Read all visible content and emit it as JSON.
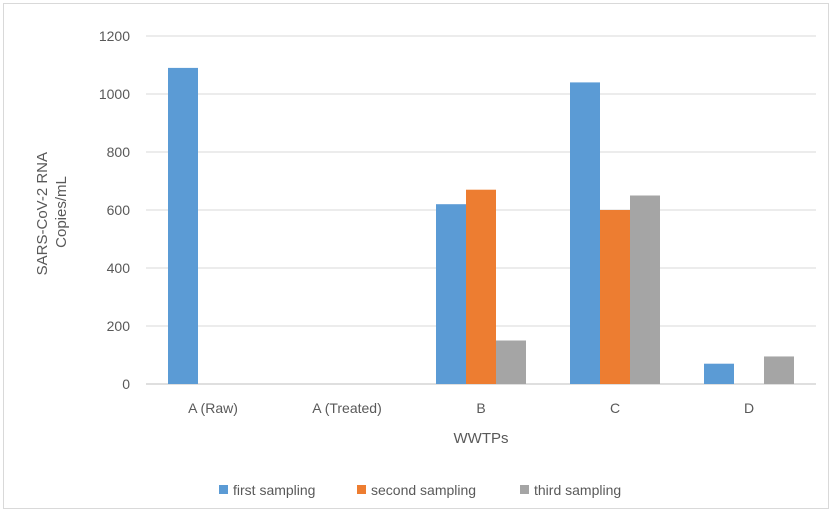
{
  "chart_data": {
    "type": "bar",
    "title": "",
    "xlabel": "WWTPs",
    "ylabel_lines": [
      "SARS-CoV-2 RNA",
      "Copies/mL"
    ],
    "categories": [
      "A (Raw)",
      "A (Treated)",
      "B",
      "C",
      "D"
    ],
    "ylim": [
      0,
      1200
    ],
    "yticks": [
      0,
      200,
      400,
      600,
      800,
      1000,
      1200
    ],
    "grid": true,
    "legend_position": "bottom",
    "series": [
      {
        "name": "first sampling",
        "color": "#5b9bd5",
        "values": [
          1090,
          0,
          620,
          1040,
          70
        ]
      },
      {
        "name": "second sampling",
        "color": "#ed7d31",
        "values": [
          0,
          0,
          670,
          600,
          0
        ]
      },
      {
        "name": "third sampling",
        "color": "#a5a5a5",
        "values": [
          0,
          0,
          150,
          650,
          95
        ]
      }
    ]
  }
}
